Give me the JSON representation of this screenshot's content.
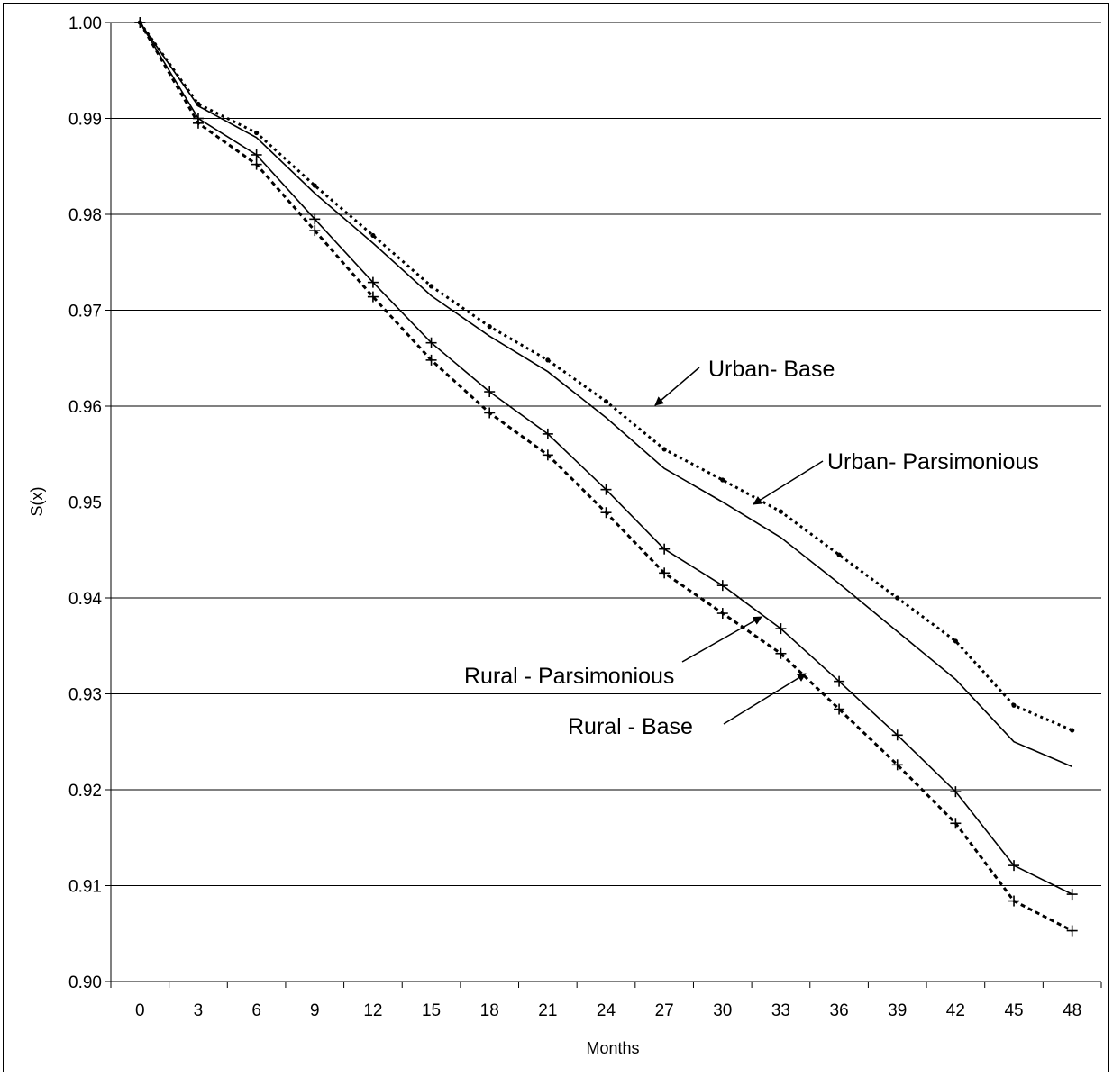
{
  "chart_data": {
    "type": "line",
    "xlabel": "Months",
    "ylabel": "S(x)",
    "ylim": [
      0.9,
      1.0
    ],
    "y_ticks": [
      "0.90",
      "0.91",
      "0.92",
      "0.93",
      "0.94",
      "0.95",
      "0.96",
      "0.97",
      "0.98",
      "0.99",
      "1.00"
    ],
    "categories": [
      "0",
      "3",
      "6",
      "9",
      "12",
      "15",
      "18",
      "21",
      "24",
      "27",
      "30",
      "33",
      "36",
      "39",
      "42",
      "45",
      "48"
    ],
    "grid": "horizontal",
    "series": [
      {
        "name": "Urban- Base",
        "style": "dotted",
        "marker": "dot",
        "values": [
          1.0,
          0.9915,
          0.9885,
          0.983,
          0.9778,
          0.9725,
          0.9683,
          0.9648,
          0.9605,
          0.9555,
          0.9523,
          0.949,
          0.9445,
          0.94,
          0.9355,
          0.9288,
          0.9262
        ]
      },
      {
        "name": "Urban- Parsimonious",
        "style": "solid",
        "marker": "none",
        "values": [
          1.0,
          0.9913,
          0.988,
          0.9822,
          0.977,
          0.9715,
          0.9673,
          0.9636,
          0.9588,
          0.9535,
          0.95,
          0.9463,
          0.9415,
          0.9365,
          0.9315,
          0.925,
          0.9224
        ]
      },
      {
        "name": "Rural - Parsimonious",
        "style": "solid",
        "marker": "plus",
        "values": [
          1.0,
          0.99,
          0.9862,
          0.9795,
          0.9729,
          0.9666,
          0.9615,
          0.9571,
          0.9513,
          0.9451,
          0.9413,
          0.9368,
          0.9313,
          0.9257,
          0.9198,
          0.9121,
          0.9091
        ]
      },
      {
        "name": "Rural - Base",
        "style": "dashed",
        "marker": "plus",
        "values": [
          1.0,
          0.9895,
          0.9852,
          0.9783,
          0.9714,
          0.9648,
          0.9593,
          0.9549,
          0.9489,
          0.9426,
          0.9384,
          0.9342,
          0.9284,
          0.9226,
          0.9165,
          0.9084,
          0.9053
        ]
      }
    ],
    "annotations": [
      {
        "text": "Urban- Base",
        "target_series": 0
      },
      {
        "text": "Urban- Parsimonious",
        "target_series": 1
      },
      {
        "text": "Rural - Parsimonious",
        "target_series": 2
      },
      {
        "text": "Rural - Base",
        "target_series": 3
      }
    ]
  }
}
